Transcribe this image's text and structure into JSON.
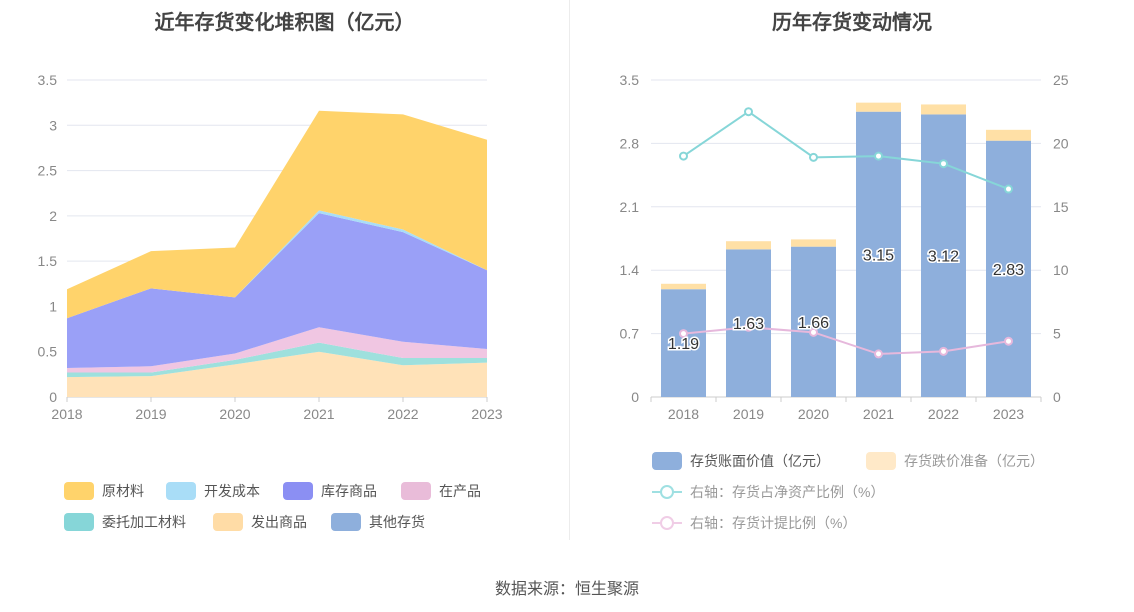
{
  "left_title": "近年存货变化堆积图（亿元）",
  "right_title": "历年存货变动情况",
  "source": "数据来源：恒生聚源",
  "colors": {
    "原材料": "#ffd36b",
    "开发成本": "#a9ddf7",
    "库存商品": "#9aa0f7",
    "在产品": "#f0c6e2",
    "委托加工材料": "#9ee0dd",
    "发出商品": "#ffe2b8",
    "其他存货": "#8faedb",
    "账面价值": "#8eafdc",
    "跌价准备": "#ffe0a6",
    "占比线": "#86d6d8",
    "计提线": "#e6b8dc"
  },
  "chart_data": [
    {
      "type": "area",
      "stacked": true,
      "x": [
        "2018",
        "2019",
        "2020",
        "2021",
        "2022",
        "2023"
      ],
      "ylim": [
        0,
        3.5
      ],
      "yticks": [
        0,
        0.5,
        1,
        1.5,
        2,
        2.5,
        3,
        3.5
      ],
      "ytick_labels": [
        "0",
        "0.5",
        "1",
        "1.5",
        "2",
        "2.5",
        "3",
        "3.5"
      ],
      "grid": true,
      "legend_position": "bottom",
      "series": [
        {
          "name": "发出商品",
          "values": [
            0.22,
            0.23,
            0.36,
            0.5,
            0.35,
            0.38
          ]
        },
        {
          "name": "委托加工材料",
          "values": [
            0.05,
            0.04,
            0.05,
            0.1,
            0.08,
            0.05
          ]
        },
        {
          "name": "其他存货",
          "values": [
            0.0,
            0.0,
            0.0,
            0.0,
            0.0,
            0.0
          ]
        },
        {
          "name": "在产品",
          "values": [
            0.05,
            0.07,
            0.07,
            0.17,
            0.18,
            0.1
          ]
        },
        {
          "name": "库存商品",
          "values": [
            0.55,
            0.86,
            0.62,
            1.26,
            1.21,
            0.87
          ]
        },
        {
          "name": "开发成本",
          "values": [
            0.0,
            0.0,
            0.0,
            0.03,
            0.03,
            0.0
          ]
        },
        {
          "name": "原材料",
          "values": [
            0.32,
            0.41,
            0.55,
            1.1,
            1.27,
            1.44
          ]
        }
      ],
      "legend": [
        "原材料",
        "开发成本",
        "库存商品",
        "在产品",
        "委托加工材料",
        "发出商品",
        "其他存货"
      ]
    },
    {
      "type": "bar",
      "stacked": true,
      "x": [
        "2018",
        "2019",
        "2020",
        "2021",
        "2022",
        "2023"
      ],
      "ylim": [
        0,
        3.5
      ],
      "yticks": [
        0,
        0.7,
        1.4,
        2.1,
        2.8,
        3.5
      ],
      "ytick_labels": [
        "0",
        "0.7",
        "1.4",
        "2.1",
        "2.8",
        "3.5"
      ],
      "y2lim": [
        0,
        25
      ],
      "y2ticks": [
        0,
        5,
        10,
        15,
        20,
        25
      ],
      "y2tick_labels": [
        "0",
        "5",
        "10",
        "15",
        "20",
        "25"
      ],
      "grid": true,
      "legend_position": "bottom",
      "bars": [
        {
          "name": "存货账面价值（亿元）",
          "values": [
            1.19,
            1.63,
            1.66,
            3.15,
            3.12,
            2.83
          ],
          "labels": [
            "1.19",
            "1.63",
            "1.66",
            "3.15",
            "3.12",
            "2.83"
          ]
        },
        {
          "name": "存货跌价准备（亿元）",
          "values": [
            0.06,
            0.09,
            0.08,
            0.1,
            0.11,
            0.12
          ]
        }
      ],
      "lines": [
        {
          "name": "右轴：存货占净资产比例（%）",
          "values": [
            19.0,
            22.5,
            18.9,
            19.0,
            18.4,
            16.4
          ]
        },
        {
          "name": "右轴：存货计提比例（%）",
          "values": [
            5.0,
            5.5,
            5.1,
            3.4,
            3.6,
            4.4
          ]
        }
      ]
    }
  ]
}
